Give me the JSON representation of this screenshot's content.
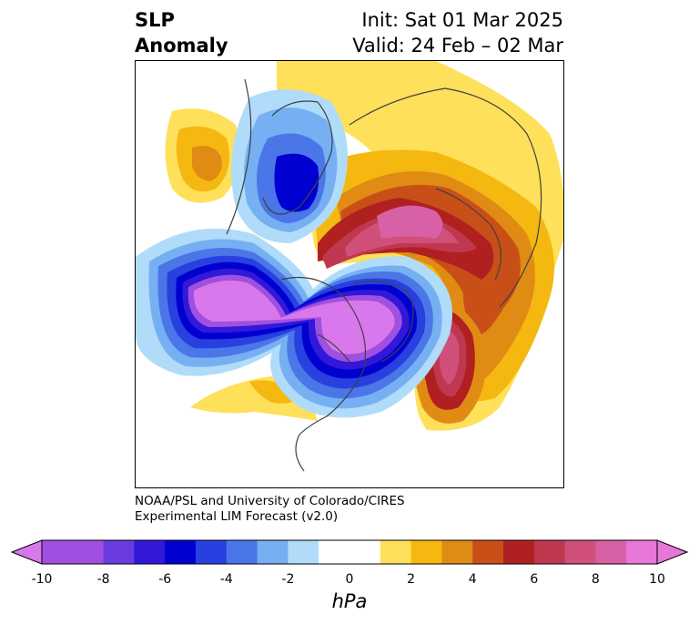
{
  "header": {
    "variable_line1": "SLP",
    "variable_line2": "Anomaly",
    "init_text": "Init: Sat 01 Mar 2025",
    "valid_text": "Valid: 24 Feb – 02 Mar"
  },
  "credit": {
    "line1": "NOAA/PSL and University of Colorado/CIRES",
    "line2": "Experimental LIM Forecast (v2.0)"
  },
  "colorbar": {
    "unit_label": "hPa",
    "ticks": [
      "-10",
      "-8",
      "-6",
      "-4",
      "-2",
      "0",
      "2",
      "4",
      "6",
      "8",
      "10"
    ],
    "bins": [
      {
        "range": [
          -10,
          -9
        ],
        "color": "#a050e0"
      },
      {
        "range": [
          -9,
          -8
        ],
        "color": "#a050e0"
      },
      {
        "range": [
          -8,
          -7
        ],
        "color": "#6a3ce0"
      },
      {
        "range": [
          -7,
          -6
        ],
        "color": "#3218d8"
      },
      {
        "range": [
          -6,
          -5
        ],
        "color": "#0000d0"
      },
      {
        "range": [
          -5,
          -4
        ],
        "color": "#2840e0"
      },
      {
        "range": [
          -4,
          -3
        ],
        "color": "#4a76e8"
      },
      {
        "range": [
          -3,
          -2
        ],
        "color": "#76b0f2"
      },
      {
        "range": [
          -2,
          -1
        ],
        "color": "#b0dcfa"
      },
      {
        "range": [
          -1,
          1
        ],
        "color": "#ffffff"
      },
      {
        "range": [
          1,
          2
        ],
        "color": "#fee05a"
      },
      {
        "range": [
          2,
          3
        ],
        "color": "#f4b810"
      },
      {
        "range": [
          3,
          4
        ],
        "color": "#e08c14"
      },
      {
        "range": [
          4,
          5
        ],
        "color": "#c85018"
      },
      {
        "range": [
          5,
          6
        ],
        "color": "#b02020"
      },
      {
        "range": [
          6,
          7
        ],
        "color": "#c03850"
      },
      {
        "range": [
          7,
          8
        ],
        "color": "#d0507a"
      },
      {
        "range": [
          8,
          9
        ],
        "color": "#d860a6"
      },
      {
        "range": [
          9,
          10
        ],
        "color": "#e878d8"
      }
    ],
    "under_color": "#d878ec",
    "over_color": "#e878d8"
  },
  "map": {
    "projection": "north-polar-stereographic",
    "field": "sea level pressure anomaly",
    "features": [
      "coastlines",
      "country borders",
      "state borders"
    ]
  }
}
